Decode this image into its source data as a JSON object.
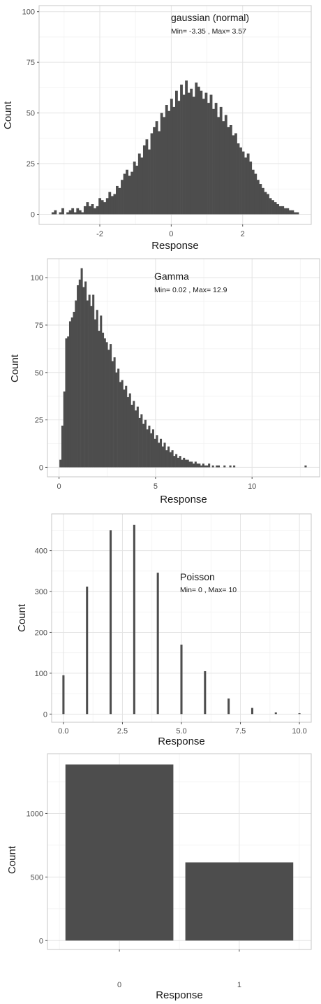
{
  "colors": {
    "bar": "#4d4d4d",
    "grid_major": "#e3e3e3",
    "grid_minor": "#f2f2f2",
    "frame": "#c7c7c7",
    "axis_text": "#4d4d4d",
    "title_text": "#1a1a1a"
  },
  "chart_data": [
    {
      "type": "bar",
      "subtype": "histogram",
      "annotation": "gaussian (normal)",
      "subannotation": "Min= -3.35 , Max= 3.57",
      "xlabel": "Response",
      "ylabel": "Count",
      "xlim": [
        -3.7,
        3.92
      ],
      "ylim": [
        -5,
        103
      ],
      "xticks": [
        -2,
        0,
        2
      ],
      "xtick_labels": [
        "-2",
        "0",
        "2"
      ],
      "yticks": [
        0,
        25,
        50,
        75,
        100
      ],
      "ytick_labels": [
        "0",
        "25",
        "50",
        "75",
        "100"
      ],
      "grid": true,
      "bin_start": -3.35,
      "bin_width": 0.0692,
      "values": [
        1,
        2,
        0,
        1,
        3,
        0,
        1,
        2,
        3,
        1,
        3,
        2,
        1,
        4,
        6,
        4,
        5,
        3,
        4,
        8,
        7,
        6,
        8,
        11,
        9,
        10,
        14,
        13,
        17,
        20,
        22,
        19,
        21,
        26,
        24,
        30,
        28,
        34,
        37,
        32,
        40,
        43,
        46,
        41,
        50,
        48,
        54,
        51,
        57,
        53,
        61,
        56,
        64,
        59,
        66,
        60,
        62,
        58,
        65,
        63,
        61,
        57,
        60,
        55,
        59,
        52,
        55,
        48,
        53,
        46,
        49,
        43,
        44,
        39,
        40,
        35,
        33,
        31,
        28,
        30,
        26,
        22,
        20,
        17,
        15,
        13,
        11,
        10,
        8,
        7,
        6,
        5,
        4,
        4,
        3,
        3,
        2,
        2,
        1,
        1
      ]
    },
    {
      "type": "bar",
      "subtype": "histogram",
      "annotation": "Gamma",
      "subannotation": "Min= 0.02 , Max= 12.9",
      "xlabel": "Response",
      "ylabel": "Count",
      "xlim": [
        -0.6,
        13.5
      ],
      "ylim": [
        -5,
        110
      ],
      "xticks": [
        0,
        5,
        10
      ],
      "xtick_labels": [
        "0",
        "5",
        "10"
      ],
      "yticks": [
        0,
        25,
        50,
        75,
        100
      ],
      "ytick_labels": [
        "0",
        "25",
        "50",
        "75",
        "100"
      ],
      "grid": true,
      "bin_start": 0.02,
      "bin_width": 0.1,
      "values": [
        4,
        22,
        40,
        68,
        69,
        77,
        79,
        82,
        88,
        96,
        99,
        105,
        95,
        98,
        88,
        91,
        85,
        91,
        78,
        83,
        72,
        80,
        71,
        68,
        66,
        62,
        65,
        56,
        58,
        50,
        52,
        45,
        46,
        41,
        43,
        37,
        39,
        33,
        35,
        30,
        32,
        26,
        28,
        23,
        25,
        20,
        22,
        18,
        20,
        15,
        17,
        13,
        15,
        11,
        13,
        9,
        11,
        8,
        9,
        6,
        7,
        5,
        6,
        4,
        5,
        4,
        4,
        3,
        3,
        2,
        3,
        2,
        2,
        1,
        2,
        1,
        1,
        2,
        0,
        1,
        0,
        1,
        1,
        0,
        0,
        1,
        0,
        0,
        1,
        0,
        1,
        0,
        0,
        0,
        0,
        0,
        0,
        0,
        0,
        0,
        0,
        0,
        0,
        0,
        0,
        0,
        0,
        0,
        0,
        0,
        0,
        0,
        0,
        0,
        0,
        0,
        0,
        0,
        0,
        0,
        0,
        0,
        0,
        0,
        0,
        0,
        0,
        1
      ]
    },
    {
      "type": "bar",
      "annotation": "Poisson",
      "subannotation": "Min= 0 , Max= 10",
      "xlabel": "Response",
      "ylabel": "Count",
      "xlim": [
        -0.5,
        10.5
      ],
      "ylim": [
        -20,
        490
      ],
      "xticks": [
        0,
        2.5,
        5,
        7.5,
        10
      ],
      "xtick_labels": [
        "0.0",
        "2.5",
        "5.0",
        "7.5",
        "10.0"
      ],
      "yticks": [
        0,
        100,
        200,
        300,
        400
      ],
      "ytick_labels": [
        "0",
        "100",
        "200",
        "300",
        "400"
      ],
      "grid": true,
      "x": [
        0,
        1,
        2,
        3,
        4,
        5,
        6,
        7,
        8,
        9,
        10
      ],
      "values": [
        95,
        312,
        450,
        463,
        346,
        170,
        105,
        38,
        15,
        4,
        2
      ]
    },
    {
      "type": "bar",
      "xlabel": "Response",
      "ylabel": "Count",
      "xlim": [
        -0.6,
        1.6
      ],
      "ylim": [
        -70,
        1470
      ],
      "categories": [
        "0",
        "1"
      ],
      "xticks": [
        0,
        1
      ],
      "xtick_labels": [
        "0",
        "1"
      ],
      "yticks": [
        0,
        500,
        1000
      ],
      "ytick_labels": [
        "0",
        "500",
        "1000"
      ],
      "grid": true,
      "values": [
        1385,
        615
      ]
    }
  ]
}
